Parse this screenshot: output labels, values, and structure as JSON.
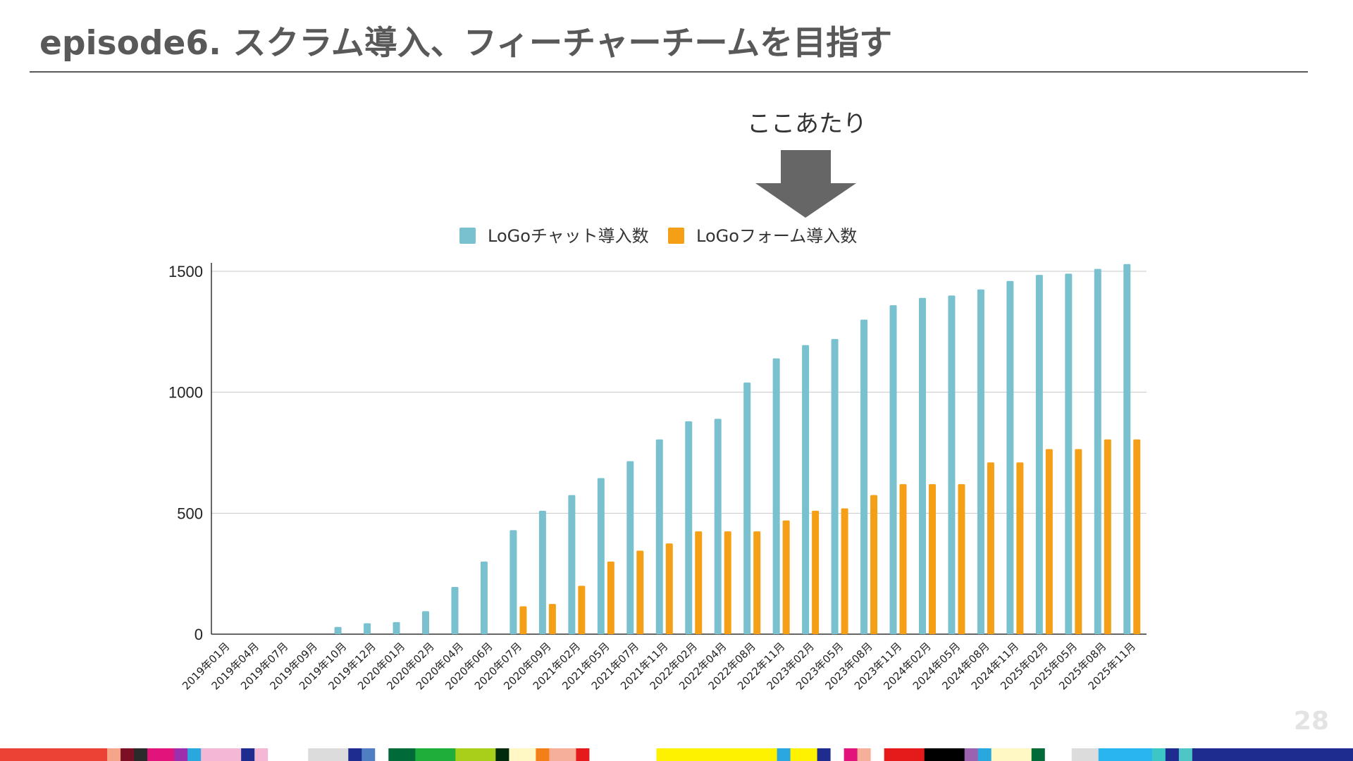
{
  "slide": {
    "title": "episode6. スクラム導入、フィーチャーチームを目指す",
    "callout": "ここあたり",
    "page_number": "28"
  },
  "colors": {
    "chat": "#7ac1d0",
    "form": "#f59f16",
    "title": "#595959",
    "arrow": "#666666",
    "strip": [
      "#ea4335",
      "#ea4335",
      "#ea4335",
      "#ea4335",
      "#ea4335",
      "#ea4335",
      "#ea4335",
      "#ea4335",
      "#f4a58a",
      "#7b1025",
      "#2b2b2b",
      "#e0147a",
      "#e0147a",
      "#9b2fae",
      "#29a8e0",
      "#f4b8d4",
      "#f4b8d4",
      "#f4b8d4",
      "#1e2b8f",
      "#f4b8d4",
      "#ffffff",
      "#ffffff",
      "#ffffff",
      "#dcdcdc",
      "#dcdcdc",
      "#dcdcdc",
      "#1e2b8f",
      "#4f7ec2",
      "#ffffff",
      "#006b38",
      "#006b38",
      "#1fae3a",
      "#1fae3a",
      "#1fae3a",
      "#a8cf1a",
      "#a8cf1a",
      "#a8cf1a",
      "#002b0c",
      "#fff8c5",
      "#fff8c5",
      "#f57f17",
      "#f6b09a",
      "#f6b09a",
      "#e51a1a",
      "#ffffff",
      "#ffffff",
      "#ffffff",
      "#ffffff",
      "#ffffff",
      "#fff200",
      "#fff200",
      "#fff200",
      "#fff200",
      "#fff200",
      "#fff200",
      "#fff200",
      "#fff200",
      "#fff200",
      "#29a8e0",
      "#fff200",
      "#fff200",
      "#1e2b8f",
      "#ffffff",
      "#e0147a",
      "#f6b09a",
      "#ffffff",
      "#e51a1a",
      "#e51a1a",
      "#e51a1a",
      "#000000",
      "#000000",
      "#000000",
      "#9b62b0",
      "#29a8e0",
      "#fff8c5",
      "#fff8c5",
      "#fff8c5",
      "#006b38",
      "#ffffff",
      "#ffffff",
      "#dcdcdc",
      "#dcdcdc",
      "#29b6f0",
      "#29b6f0",
      "#29b6f0",
      "#29b6f0",
      "#3cc6c6",
      "#1e2b8f",
      "#4fc6c6",
      "#1e2b8f",
      "#1e2b8f",
      "#1e2b8f",
      "#1e2b8f",
      "#1e2b8f",
      "#1e2b8f",
      "#1e2b8f",
      "#1e2b8f",
      "#1e2b8f",
      "#1e2b8f",
      "#1e2b8f",
      "#1e2b8f"
    ]
  },
  "chart_data": {
    "type": "bar",
    "title": "",
    "xlabel": "",
    "ylabel": "",
    "ylim": [
      0,
      1500
    ],
    "yticks": [
      "0",
      "500",
      "1000",
      "1500"
    ],
    "grid": true,
    "legend_position": "top-center",
    "categories": [
      "2019年01月",
      "2019年04月",
      "2019年07月",
      "2019年09月",
      "2019年10月",
      "2019年12月",
      "2020年01月",
      "2020年02月",
      "2020年04月",
      "2020年06月",
      "2020年07月",
      "2020年09月",
      "2021年02月",
      "2021年05月",
      "2021年07月",
      "2021年11月",
      "2022年02月",
      "2022年04月",
      "2022年08月",
      "2022年11月",
      "2023年02月",
      "2023年05月",
      "2023年08月",
      "2023年11月",
      "2024年02月",
      "2024年05月",
      "2024年08月",
      "2024年11月",
      "2025年02月",
      "2025年05月",
      "2025年08月",
      "2025年11月"
    ],
    "series": [
      {
        "name": "LoGoチャット導入数",
        "values": [
          0,
          0,
          0,
          0,
          30,
          45,
          50,
          95,
          195,
          300,
          430,
          510,
          575,
          645,
          715,
          805,
          880,
          890,
          1040,
          1140,
          1195,
          1220,
          1300,
          1360,
          1390,
          1400,
          1425,
          1460,
          1485,
          1490,
          1510,
          1530
        ]
      },
      {
        "name": "LoGoフォーム導入数",
        "values": [
          0,
          0,
          0,
          0,
          0,
          0,
          0,
          0,
          0,
          0,
          115,
          125,
          200,
          300,
          345,
          375,
          425,
          425,
          425,
          470,
          510,
          520,
          575,
          620,
          620,
          620,
          710,
          710,
          765,
          765,
          805,
          805
        ]
      }
    ]
  }
}
